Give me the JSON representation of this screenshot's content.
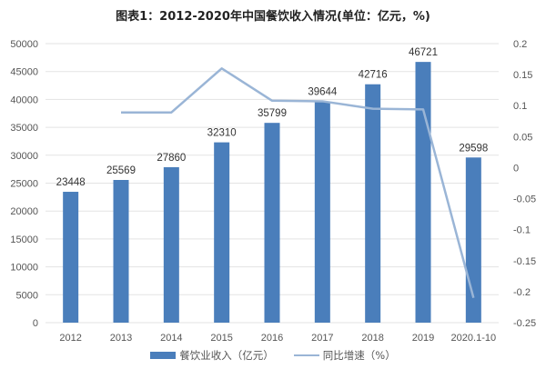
{
  "chart_data": {
    "type": "bar",
    "title": "图表1：2012-2020年中国餐饮收入情况(单位：亿元，%)",
    "categories": [
      "2012",
      "2013",
      "2014",
      "2015",
      "2016",
      "2017",
      "2018",
      "2019",
      "2020.1-10"
    ],
    "series": [
      {
        "name": "餐饮业收入（亿元）",
        "type": "bar",
        "axis": "left",
        "color": "#4a7ebb",
        "values": [
          23448,
          25569,
          27860,
          32310,
          35799,
          39644,
          42716,
          46721,
          29598
        ]
      },
      {
        "name": "同比增速（%）",
        "type": "line",
        "axis": "right",
        "color": "#9ab5d6",
        "values": [
          null,
          0.089,
          0.089,
          0.16,
          0.108,
          0.107,
          0.095,
          0.094,
          -0.21
        ]
      }
    ],
    "left_axis": {
      "ylim": [
        0,
        50000
      ],
      "ticks": [
        "0",
        "5000",
        "10000",
        "15000",
        "20000",
        "25000",
        "30000",
        "35000",
        "40000",
        "45000",
        "50000"
      ]
    },
    "right_axis": {
      "ylim": [
        -0.25,
        0.2
      ],
      "ticks": [
        "0.2",
        "0.15",
        "0.1",
        "0.05",
        "0",
        "-0.05",
        "-0.1",
        "-0.15",
        "-0.2",
        "-0.25"
      ]
    },
    "grid": true,
    "legend_position": "bottom"
  },
  "legend": {
    "bar_label": "餐饮业收入（亿元）",
    "line_label": "同比增速（%）"
  }
}
